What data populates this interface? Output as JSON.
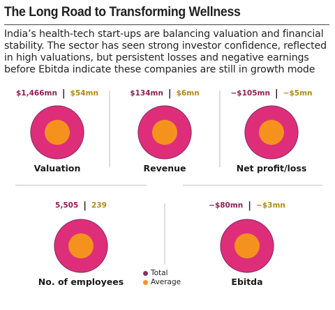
{
  "title": "The Long Road to Transforming Wellness",
  "subtitle": "India’s health-tech start-ups are balancing valuation and financial stability. The sector has seen strong investor confidence, reflected in high valuations, but persistent losses and negative earnings before Ebitda indicate these companies are still in growth mode",
  "colors": {
    "total": "#de2e7a",
    "average": "#f5921e",
    "total_text": "#8b2252",
    "average_text": "#b08a12"
  },
  "chart_data": {
    "type": "proportional-circles",
    "series": [
      {
        "name": "Total"
      },
      {
        "name": "Average"
      }
    ],
    "metrics": [
      {
        "label": "Valuation",
        "total": "$1,466mn",
        "average": "$54mn"
      },
      {
        "label": "Revenue",
        "total": "$134mn",
        "average": "$6mn"
      },
      {
        "label": "Net profit/loss",
        "total": "−$105mn",
        "average": "−$5mn"
      },
      {
        "label": "No. of employees",
        "total": "5,505",
        "average": "239"
      },
      {
        "label": "Ebitda",
        "total": "−$80mn",
        "average": "−$3mn"
      }
    ],
    "legend": {
      "items": [
        "Total",
        "Average"
      ],
      "placement": "bottom-center"
    }
  }
}
